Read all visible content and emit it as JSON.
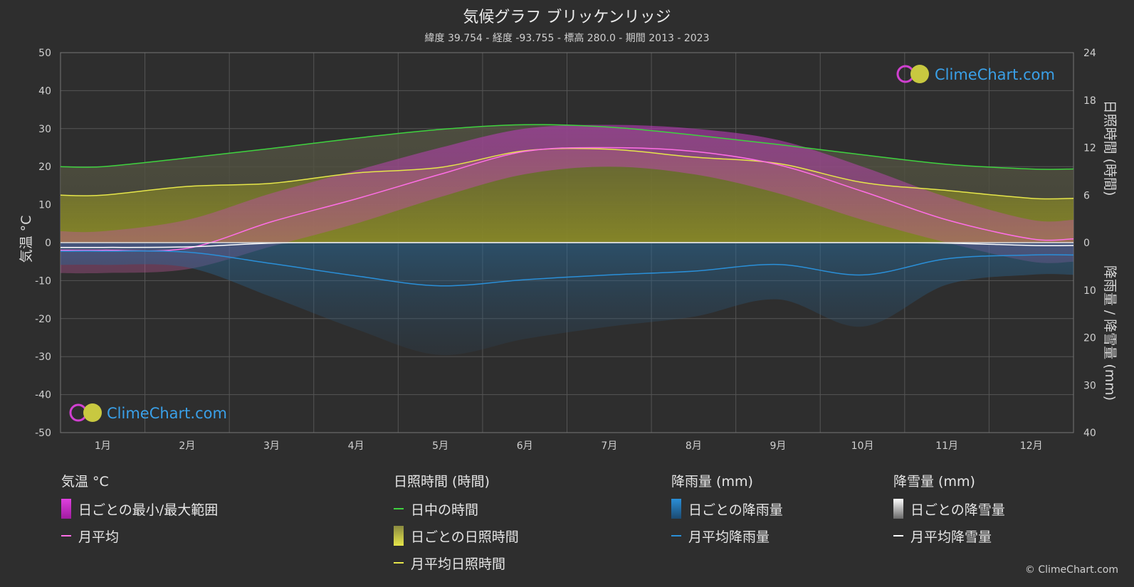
{
  "title": "気候グラフ ブリッケンリッジ",
  "subtitle": "緯度 39.754 - 経度 -93.755 - 標高 280.0 - 期間 2013 - 2023",
  "logo_text": "ClimeChart.com",
  "copyright": "© ClimeChart.com",
  "axes": {
    "left_label": "気温 °C",
    "right_top_label": "日照時間 (時間)",
    "right_bottom_label": "降雨量 / 降雪量 (mm)",
    "left_ticks": [
      "50",
      "40",
      "30",
      "20",
      "10",
      "0",
      "-10",
      "-20",
      "-30",
      "-40",
      "-50"
    ],
    "right_top_ticks": [
      "24",
      "18",
      "12",
      "6",
      "0"
    ],
    "right_bottom_ticks": [
      "10",
      "20",
      "30",
      "40"
    ]
  },
  "legend": {
    "temperature": {
      "title": "気温 °C",
      "range": "日ごとの最小/最大範囲",
      "avg": "月平均"
    },
    "sunshine": {
      "title": "日照時間 (時間)",
      "daylight": "日中の時間",
      "daily": "日ごとの日照時間",
      "avg": "月平均日照時間"
    },
    "rain": {
      "title": "降雨量 (mm)",
      "daily": "日ごとの降雨量",
      "avg": "月平均降雨量"
    },
    "snow": {
      "title": "降雪量 (mm)",
      "daily": "日ごとの降雪量",
      "avg": "月平均降雪量"
    }
  },
  "colors": {
    "background": "#2e2e2e",
    "daylight": "#3fd23f",
    "sunshine": "#e6e64a",
    "temp_avg": "#ff6ee6",
    "temp_range": "#d12ad1",
    "rain": "#2a8fd8",
    "snow": "#ffffff"
  },
  "chart_data": {
    "type": "line",
    "months": [
      "1月",
      "2月",
      "3月",
      "4月",
      "5月",
      "6月",
      "7月",
      "8月",
      "9月",
      "10月",
      "11月",
      "12月"
    ],
    "temp_ylim": [
      -50,
      50
    ],
    "sun_ylim": [
      0,
      24
    ],
    "precip_ylim": [
      0,
      40
    ],
    "series": [
      {
        "name": "日中の時間",
        "axis": "hours",
        "values": [
          9.6,
          10.7,
          11.9,
          13.2,
          14.3,
          14.9,
          14.6,
          13.6,
          12.4,
          11.1,
          9.9,
          9.3
        ]
      },
      {
        "name": "月平均日照時間",
        "axis": "hours",
        "values": [
          6.0,
          7.1,
          7.5,
          8.8,
          9.5,
          11.6,
          11.8,
          10.8,
          10.0,
          7.6,
          6.6,
          5.6
        ]
      },
      {
        "name": "月平均",
        "axis": "temp",
        "values": [
          -2.0,
          -1.5,
          5.5,
          11.5,
          18.0,
          24.0,
          25.0,
          24.0,
          20.5,
          13.5,
          6.0,
          1.0
        ]
      },
      {
        "name": "月平均降雨量",
        "axis": "precip",
        "values": [
          1.8,
          2.0,
          4.4,
          7.0,
          9.1,
          7.8,
          6.8,
          6.0,
          4.6,
          6.8,
          3.4,
          2.6
        ]
      },
      {
        "name": "月平均降雪量",
        "axis": "precip",
        "values": [
          1.0,
          0.9,
          0.1,
          0.0,
          0.0,
          0.0,
          0.0,
          0.0,
          0.0,
          0.0,
          0.1,
          0.6
        ]
      }
    ],
    "temp_range": {
      "name": "日ごとの最小/最大範囲",
      "max": [
        3,
        6,
        13,
        19,
        25,
        30,
        31,
        30,
        27,
        20,
        12,
        6
      ],
      "min": [
        -8,
        -7,
        -1,
        5,
        12,
        18,
        20,
        18,
        13,
        6,
        0,
        -5
      ]
    }
  }
}
